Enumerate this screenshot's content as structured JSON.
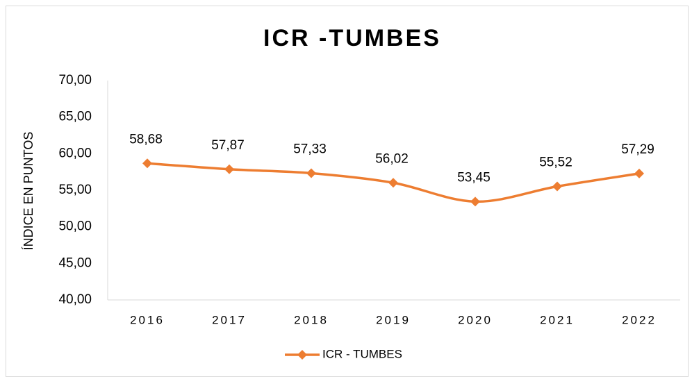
{
  "chart_data": {
    "type": "line",
    "title": "ICR -TUMBES",
    "y_label": "ÍNDICE EN PUNTOS",
    "categories": [
      "2016",
      "2017",
      "2018",
      "2019",
      "2020",
      "2021",
      "2022"
    ],
    "series": [
      {
        "name": "ICR - TUMBES",
        "color": "#ed7d31",
        "values": [
          58.68,
          57.87,
          57.33,
          56.02,
          53.45,
          55.52,
          57.29
        ],
        "value_labels": [
          "58,68",
          "57,87",
          "57,33",
          "56,02",
          "53,45",
          "55,52",
          "57,29"
        ]
      }
    ],
    "ylim": [
      40,
      70
    ],
    "yticks": [
      {
        "value": 40,
        "label": "40,00"
      },
      {
        "value": 45,
        "label": "45,00"
      },
      {
        "value": 50,
        "label": "50,00"
      },
      {
        "value": 55,
        "label": "55,00"
      },
      {
        "value": 60,
        "label": "60,00"
      },
      {
        "value": 65,
        "label": "65,00"
      },
      {
        "value": 70,
        "label": "70,00"
      }
    ],
    "legend": "bottom"
  }
}
